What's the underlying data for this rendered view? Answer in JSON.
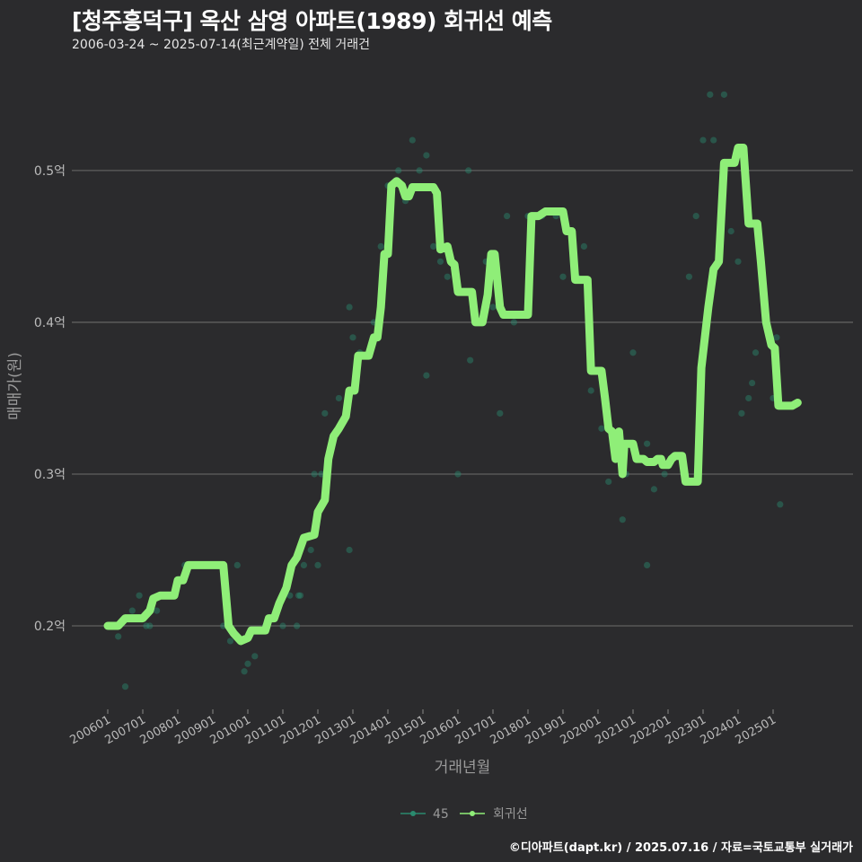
{
  "title": "[청주흥덕구] 옥산 삼영 아파트(1989) 회귀선 예측",
  "subtitle": "2006-03-24 ~ 2025-07-14(최근계약일) 전체 거래건",
  "footer": "©디아파트(dapt.kr) / 2025.07.16 / 자료=국토교통부 실거래가",
  "chart_data": {
    "type": "line",
    "xlabel": "거래년월",
    "ylabel": "매매가(원)",
    "x_range": [
      2006.0,
      2025.9
    ],
    "ylim": [
      0.145,
      0.565
    ],
    "y_ticks": [
      {
        "value": 0.2,
        "label": "0.2억"
      },
      {
        "value": 0.3,
        "label": "0.3억"
      },
      {
        "value": 0.4,
        "label": "0.4억"
      },
      {
        "value": 0.5,
        "label": "0.5억"
      }
    ],
    "x_ticks": [
      {
        "value": 2006,
        "label": "200601"
      },
      {
        "value": 2007,
        "label": "200701"
      },
      {
        "value": 2008,
        "label": "200801"
      },
      {
        "value": 2009,
        "label": "200901"
      },
      {
        "value": 2010,
        "label": "201001"
      },
      {
        "value": 2011,
        "label": "201101"
      },
      {
        "value": 2012,
        "label": "201201"
      },
      {
        "value": 2013,
        "label": "201301"
      },
      {
        "value": 2014,
        "label": "201401"
      },
      {
        "value": 2015,
        "label": "201501"
      },
      {
        "value": 2016,
        "label": "201601"
      },
      {
        "value": 2017,
        "label": "201701"
      },
      {
        "value": 2018,
        "label": "201801"
      },
      {
        "value": 2019,
        "label": "201901"
      },
      {
        "value": 2020,
        "label": "202001"
      },
      {
        "value": 2021,
        "label": "202101"
      },
      {
        "value": 2022,
        "label": "202201"
      },
      {
        "value": 2023,
        "label": "202301"
      },
      {
        "value": 2024,
        "label": "202401"
      },
      {
        "value": 2025,
        "label": "202501"
      }
    ],
    "legend": [
      {
        "name": "45",
        "color": "#2a8a6e"
      },
      {
        "name": "회귀선",
        "color": "#8fee78"
      }
    ],
    "series": [
      {
        "name": "45",
        "type": "scatter",
        "color": "#2a8a6e",
        "points": [
          [
            2006.2,
            0.2
          ],
          [
            2006.3,
            0.193
          ],
          [
            2006.5,
            0.16
          ],
          [
            2006.7,
            0.21
          ],
          [
            2006.9,
            0.22
          ],
          [
            2007.1,
            0.2
          ],
          [
            2007.2,
            0.2
          ],
          [
            2007.4,
            0.21
          ],
          [
            2007.6,
            0.22
          ],
          [
            2007.8,
            0.22
          ],
          [
            2008.0,
            0.23
          ],
          [
            2008.2,
            0.24
          ],
          [
            2008.5,
            0.24
          ],
          [
            2008.8,
            0.24
          ],
          [
            2009.1,
            0.24
          ],
          [
            2009.3,
            0.2
          ],
          [
            2009.5,
            0.19
          ],
          [
            2009.7,
            0.24
          ],
          [
            2009.9,
            0.17
          ],
          [
            2010.0,
            0.175
          ],
          [
            2010.2,
            0.18
          ],
          [
            2010.5,
            0.2
          ],
          [
            2010.8,
            0.21
          ],
          [
            2011.0,
            0.2
          ],
          [
            2011.2,
            0.22
          ],
          [
            2011.4,
            0.2
          ],
          [
            2011.45,
            0.22
          ],
          [
            2011.5,
            0.22
          ],
          [
            2011.6,
            0.24
          ],
          [
            2011.8,
            0.25
          ],
          [
            2011.9,
            0.3
          ],
          [
            2012.0,
            0.24
          ],
          [
            2012.1,
            0.3
          ],
          [
            2012.2,
            0.34
          ],
          [
            2012.4,
            0.32
          ],
          [
            2012.6,
            0.35
          ],
          [
            2012.9,
            0.25
          ],
          [
            2012.9,
            0.41
          ],
          [
            2013.0,
            0.39
          ],
          [
            2013.2,
            0.38
          ],
          [
            2013.6,
            0.4
          ],
          [
            2013.8,
            0.45
          ],
          [
            2014.0,
            0.49
          ],
          [
            2014.3,
            0.5
          ],
          [
            2014.4,
            0.49
          ],
          [
            2014.5,
            0.48
          ],
          [
            2014.7,
            0.52
          ],
          [
            2014.9,
            0.5
          ],
          [
            2015.1,
            0.51
          ],
          [
            2015.1,
            0.365
          ],
          [
            2015.3,
            0.45
          ],
          [
            2015.5,
            0.44
          ],
          [
            2015.7,
            0.43
          ],
          [
            2016.0,
            0.3
          ],
          [
            2016.2,
            0.42
          ],
          [
            2016.3,
            0.5
          ],
          [
            2016.35,
            0.375
          ],
          [
            2016.5,
            0.4
          ],
          [
            2016.8,
            0.44
          ],
          [
            2017.0,
            0.41
          ],
          [
            2017.2,
            0.34
          ],
          [
            2017.4,
            0.47
          ],
          [
            2017.6,
            0.4
          ],
          [
            2018.0,
            0.47
          ],
          [
            2018.4,
            0.47
          ],
          [
            2018.8,
            0.47
          ],
          [
            2019.0,
            0.43
          ],
          [
            2019.4,
            0.43
          ],
          [
            2019.6,
            0.45
          ],
          [
            2019.8,
            0.355
          ],
          [
            2020.1,
            0.33
          ],
          [
            2020.3,
            0.295
          ],
          [
            2020.5,
            0.32
          ],
          [
            2020.7,
            0.27
          ],
          [
            2020.8,
            0.3
          ],
          [
            2021.0,
            0.38
          ],
          [
            2021.2,
            0.31
          ],
          [
            2021.4,
            0.24
          ],
          [
            2021.4,
            0.32
          ],
          [
            2021.6,
            0.29
          ],
          [
            2021.9,
            0.3
          ],
          [
            2022.1,
            0.31
          ],
          [
            2022.6,
            0.43
          ],
          [
            2022.8,
            0.47
          ],
          [
            2023.0,
            0.52
          ],
          [
            2023.2,
            0.55
          ],
          [
            2023.3,
            0.52
          ],
          [
            2023.6,
            0.55
          ],
          [
            2023.8,
            0.46
          ],
          [
            2024.0,
            0.44
          ],
          [
            2024.1,
            0.34
          ],
          [
            2024.3,
            0.35
          ],
          [
            2024.4,
            0.36
          ],
          [
            2024.5,
            0.38
          ],
          [
            2025.0,
            0.35
          ],
          [
            2025.1,
            0.39
          ],
          [
            2025.2,
            0.28
          ]
        ]
      },
      {
        "name": "회귀선",
        "type": "line",
        "color": "#8fee78",
        "points": [
          [
            2006.0,
            0.2
          ],
          [
            2006.3,
            0.2
          ],
          [
            2006.5,
            0.205
          ],
          [
            2007.0,
            0.205
          ],
          [
            2007.2,
            0.21
          ],
          [
            2007.3,
            0.218
          ],
          [
            2007.5,
            0.22
          ],
          [
            2007.9,
            0.22
          ],
          [
            2008.0,
            0.23
          ],
          [
            2008.15,
            0.23
          ],
          [
            2008.3,
            0.24
          ],
          [
            2009.3,
            0.24
          ],
          [
            2009.45,
            0.2
          ],
          [
            2009.6,
            0.195
          ],
          [
            2009.8,
            0.19
          ],
          [
            2010.0,
            0.192
          ],
          [
            2010.1,
            0.197
          ],
          [
            2010.5,
            0.197
          ],
          [
            2010.6,
            0.205
          ],
          [
            2010.75,
            0.205
          ],
          [
            2010.9,
            0.215
          ],
          [
            2011.1,
            0.225
          ],
          [
            2011.25,
            0.24
          ],
          [
            2011.4,
            0.245
          ],
          [
            2011.6,
            0.258
          ],
          [
            2011.9,
            0.26
          ],
          [
            2012.0,
            0.275
          ],
          [
            2012.2,
            0.283
          ],
          [
            2012.3,
            0.31
          ],
          [
            2012.45,
            0.325
          ],
          [
            2012.6,
            0.33
          ],
          [
            2012.8,
            0.338
          ],
          [
            2012.9,
            0.355
          ],
          [
            2013.05,
            0.355
          ],
          [
            2013.15,
            0.378
          ],
          [
            2013.45,
            0.378
          ],
          [
            2013.6,
            0.39
          ],
          [
            2013.7,
            0.39
          ],
          [
            2013.8,
            0.41
          ],
          [
            2013.9,
            0.445
          ],
          [
            2014.0,
            0.445
          ],
          [
            2014.1,
            0.49
          ],
          [
            2014.25,
            0.493
          ],
          [
            2014.4,
            0.49
          ],
          [
            2014.5,
            0.483
          ],
          [
            2014.6,
            0.483
          ],
          [
            2014.7,
            0.489
          ],
          [
            2015.3,
            0.489
          ],
          [
            2015.4,
            0.485
          ],
          [
            2015.5,
            0.448
          ],
          [
            2015.7,
            0.45
          ],
          [
            2015.8,
            0.44
          ],
          [
            2015.9,
            0.438
          ],
          [
            2016.0,
            0.42
          ],
          [
            2016.4,
            0.42
          ],
          [
            2016.5,
            0.4
          ],
          [
            2016.7,
            0.4
          ],
          [
            2016.85,
            0.418
          ],
          [
            2016.95,
            0.445
          ],
          [
            2017.05,
            0.445
          ],
          [
            2017.2,
            0.41
          ],
          [
            2017.3,
            0.405
          ],
          [
            2018.0,
            0.405
          ],
          [
            2018.1,
            0.47
          ],
          [
            2018.3,
            0.47
          ],
          [
            2018.5,
            0.473
          ],
          [
            2019.0,
            0.473
          ],
          [
            2019.1,
            0.46
          ],
          [
            2019.25,
            0.46
          ],
          [
            2019.35,
            0.428
          ],
          [
            2019.7,
            0.428
          ],
          [
            2019.8,
            0.368
          ],
          [
            2020.1,
            0.368
          ],
          [
            2020.2,
            0.35
          ],
          [
            2020.3,
            0.33
          ],
          [
            2020.4,
            0.328
          ],
          [
            2020.5,
            0.31
          ],
          [
            2020.6,
            0.328
          ],
          [
            2020.7,
            0.3
          ],
          [
            2020.75,
            0.32
          ],
          [
            2021.0,
            0.32
          ],
          [
            2021.1,
            0.31
          ],
          [
            2021.3,
            0.31
          ],
          [
            2021.4,
            0.308
          ],
          [
            2021.6,
            0.308
          ],
          [
            2021.7,
            0.31
          ],
          [
            2021.8,
            0.31
          ],
          [
            2021.85,
            0.306
          ],
          [
            2022.0,
            0.306
          ],
          [
            2022.1,
            0.31
          ],
          [
            2022.2,
            0.312
          ],
          [
            2022.4,
            0.312
          ],
          [
            2022.5,
            0.295
          ],
          [
            2022.85,
            0.295
          ],
          [
            2022.95,
            0.37
          ],
          [
            2023.15,
            0.41
          ],
          [
            2023.3,
            0.435
          ],
          [
            2023.45,
            0.44
          ],
          [
            2023.6,
            0.505
          ],
          [
            2023.9,
            0.505
          ],
          [
            2024.0,
            0.515
          ],
          [
            2024.15,
            0.515
          ],
          [
            2024.3,
            0.465
          ],
          [
            2024.55,
            0.465
          ],
          [
            2024.65,
            0.44
          ],
          [
            2024.8,
            0.4
          ],
          [
            2024.95,
            0.385
          ],
          [
            2025.05,
            0.383
          ],
          [
            2025.15,
            0.345
          ],
          [
            2025.55,
            0.345
          ],
          [
            2025.7,
            0.347
          ]
        ]
      }
    ]
  }
}
